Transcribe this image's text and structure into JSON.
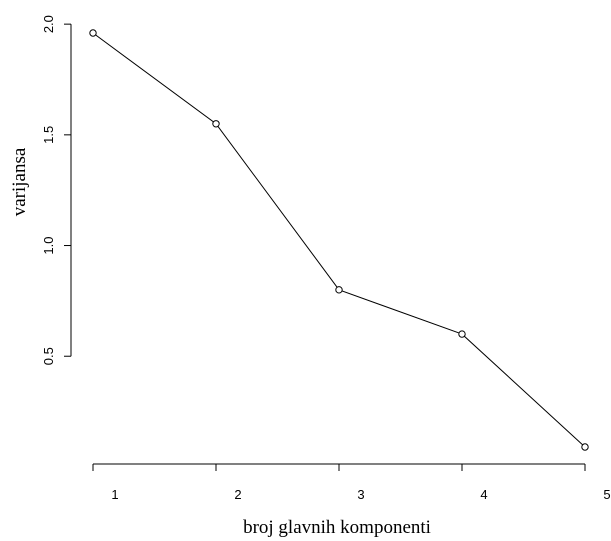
{
  "chart_data": {
    "type": "line",
    "title": "",
    "xlabel": "broj glavnih komponenti",
    "ylabel": "varijansa",
    "x": [
      1,
      2,
      3,
      4,
      5
    ],
    "x_tick_labels": [
      "1",
      "2",
      "3",
      "4",
      "5"
    ],
    "y_ticks": [
      0.5,
      1.0,
      1.5,
      2.0
    ],
    "y_tick_labels": [
      "0.5",
      "1.0",
      "1.5",
      "2.0"
    ],
    "xlim": [
      1,
      5
    ],
    "ylim": [
      0.09,
      1.96
    ],
    "series": [
      {
        "values": [
          1.96,
          1.55,
          0.8,
          0.6,
          0.09
        ],
        "color": "#000000",
        "marker": "open-circle"
      }
    ],
    "grid": false,
    "legend": "none"
  }
}
